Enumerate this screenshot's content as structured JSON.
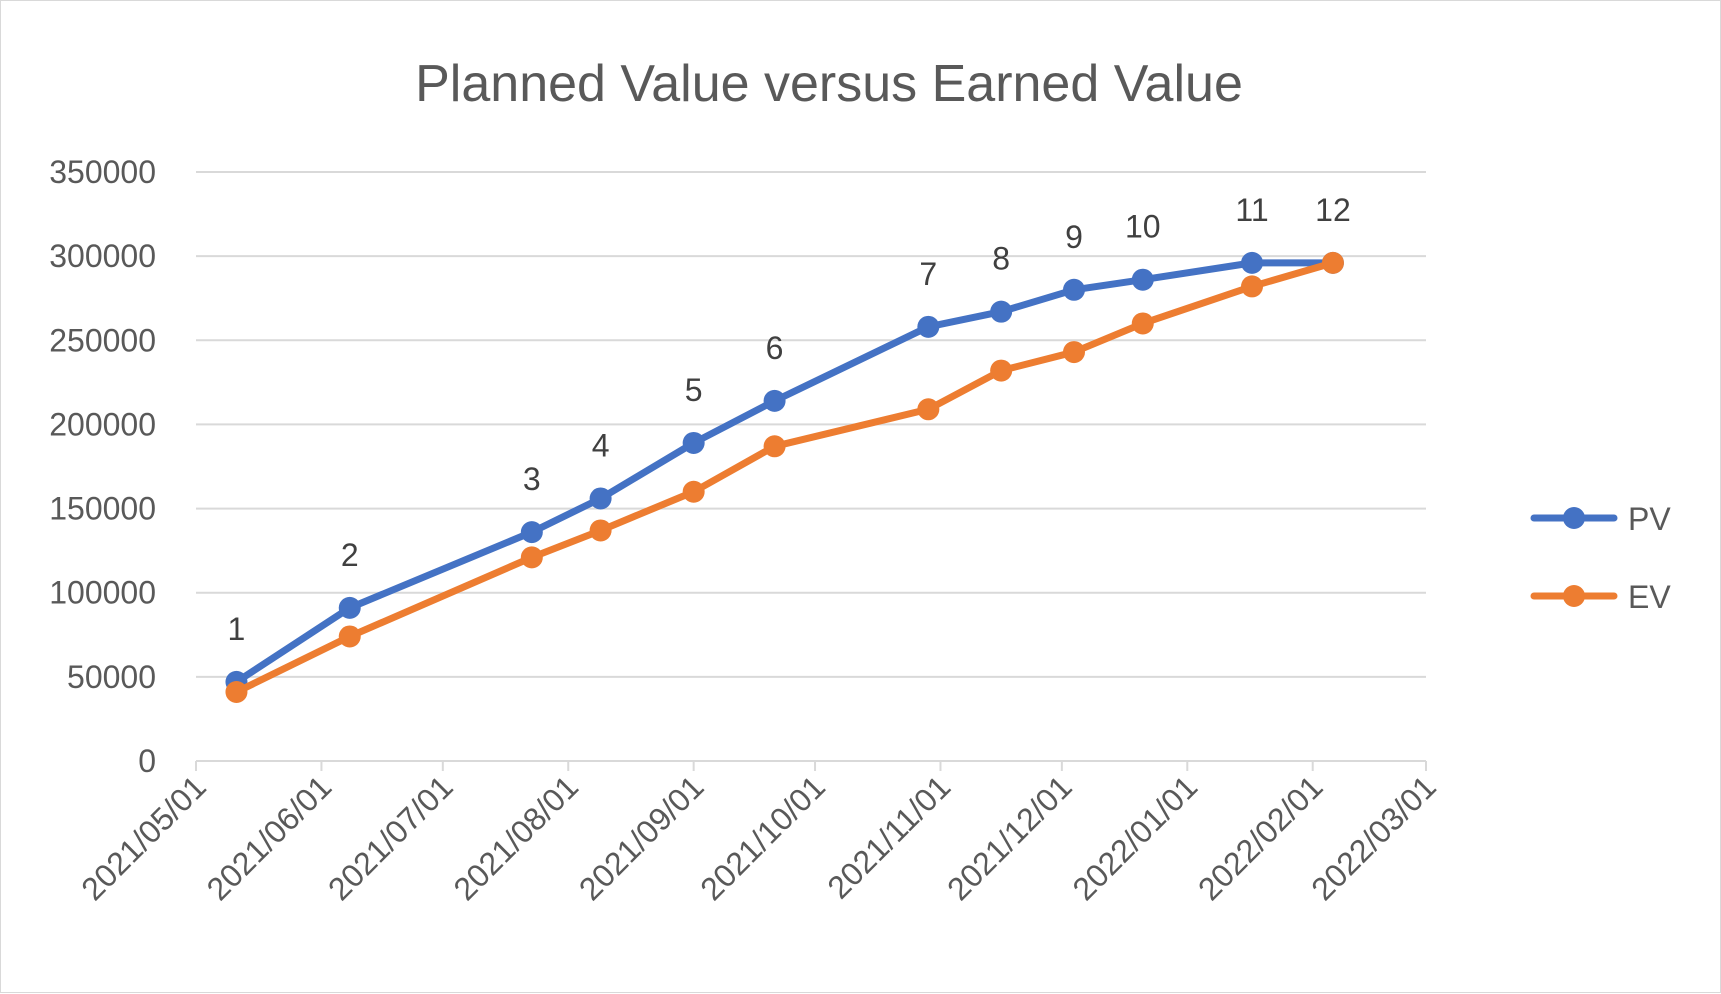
{
  "chart_data": {
    "type": "line",
    "title": "Planned Value versus Earned Value",
    "xlabel": "",
    "ylabel": "",
    "ylim": [
      0,
      350000
    ],
    "yticks": [
      0,
      50000,
      100000,
      150000,
      200000,
      250000,
      300000,
      350000
    ],
    "ytick_labels": [
      "0",
      "50000",
      "100000",
      "150000",
      "200000",
      "250000",
      "300000",
      "350000"
    ],
    "xlim": [
      "2021-05-01",
      "2022-03-01"
    ],
    "xtick_labels": [
      "2021/05/01",
      "2021/06/01",
      "2021/07/01",
      "2021/08/01",
      "2021/09/01",
      "2021/10/01",
      "2021/11/01",
      "2021/12/01",
      "2022/01/01",
      "2022/02/01",
      "2022/03/01"
    ],
    "x": [
      "2021-05-11",
      "2021-06-08",
      "2021-07-23",
      "2021-08-09",
      "2021-09-01",
      "2021-09-21",
      "2021-10-29",
      "2021-11-16",
      "2021-12-04",
      "2021-12-21",
      "2022-01-17",
      "2022-02-06"
    ],
    "point_labels": [
      "1",
      "2",
      "3",
      "4",
      "5",
      "6",
      "7",
      "8",
      "9",
      "10",
      "11",
      "12"
    ],
    "series": [
      {
        "name": "PV",
        "color": "#4472C4",
        "values": [
          47000,
          91000,
          136000,
          156000,
          189000,
          214000,
          258000,
          267000,
          280000,
          286000,
          296000,
          296000
        ]
      },
      {
        "name": "EV",
        "color": "#ED7D31",
        "values": [
          41000,
          74000,
          121000,
          137000,
          160000,
          187000,
          209000,
          232000,
          243000,
          260000,
          282000,
          296000
        ]
      }
    ],
    "grid": true,
    "legend_position": "right"
  }
}
